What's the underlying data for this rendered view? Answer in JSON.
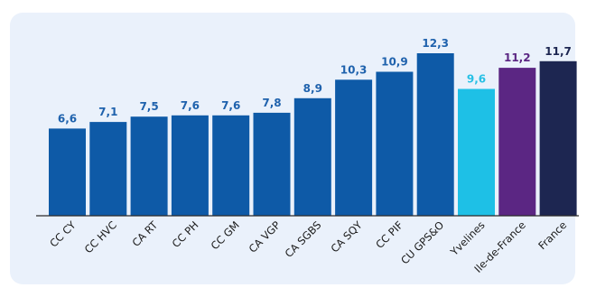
{
  "chart_data": {
    "type": "bar",
    "categories": [
      "CC CY",
      "CC HVC",
      "CA RT",
      "CC PH",
      "CC GM",
      "CA VGP",
      "CA SGBS",
      "CA SQY",
      "CC PIF",
      "CU GPS&O",
      "Yvelines",
      "Ile-de-France",
      "France"
    ],
    "values": [
      6.6,
      7.1,
      7.5,
      7.6,
      7.6,
      7.8,
      8.9,
      10.3,
      10.9,
      12.3,
      9.6,
      11.2,
      11.7
    ],
    "value_labels": [
      "6,6",
      "7,1",
      "7,5",
      "7,6",
      "7,6",
      "7,8",
      "8,9",
      "10,3",
      "10,9",
      "12,3",
      "9,6",
      "11,2",
      "11,7"
    ],
    "colors": [
      "#0e5aa7",
      "#0e5aa7",
      "#0e5aa7",
      "#0e5aa7",
      "#0e5aa7",
      "#0e5aa7",
      "#0e5aa7",
      "#0e5aa7",
      "#0e5aa7",
      "#0e5aa7",
      "#1ec0e6",
      "#5b2683",
      "#1d2651"
    ],
    "label_colors": [
      "#1f62ad",
      "#1f62ad",
      "#1f62ad",
      "#1f62ad",
      "#1f62ad",
      "#1f62ad",
      "#1f62ad",
      "#1f62ad",
      "#1f62ad",
      "#1f62ad",
      "#27c0e5",
      "#5b2683",
      "#1d2651"
    ],
    "ylim": [
      0,
      12.3
    ],
    "grid": false,
    "legend": "none"
  }
}
